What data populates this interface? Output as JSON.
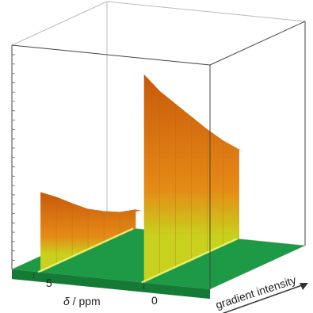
{
  "chart_data": {
    "type": "surface",
    "x_axis": {
      "label_symbol": "δ",
      "label_unit": " / ppm",
      "ticks": [
        5,
        0
      ],
      "range": [
        6,
        -3
      ]
    },
    "y_axis": {
      "label": "gradient intensity"
    },
    "series": [
      {
        "position": 4.7,
        "values": [
          1.0,
          0.85,
          0.68,
          0.52,
          0.4,
          0.3,
          0.24
        ]
      },
      {
        "position": 0.0,
        "values": [
          2.6,
          2.3,
          2.05,
          1.8,
          1.55,
          1.32,
          1.12
        ]
      }
    ],
    "colors": {
      "floor": "#1e9a46",
      "low": "#c8d21e",
      "mid": "#e58a16",
      "high": "#c8590a"
    }
  }
}
